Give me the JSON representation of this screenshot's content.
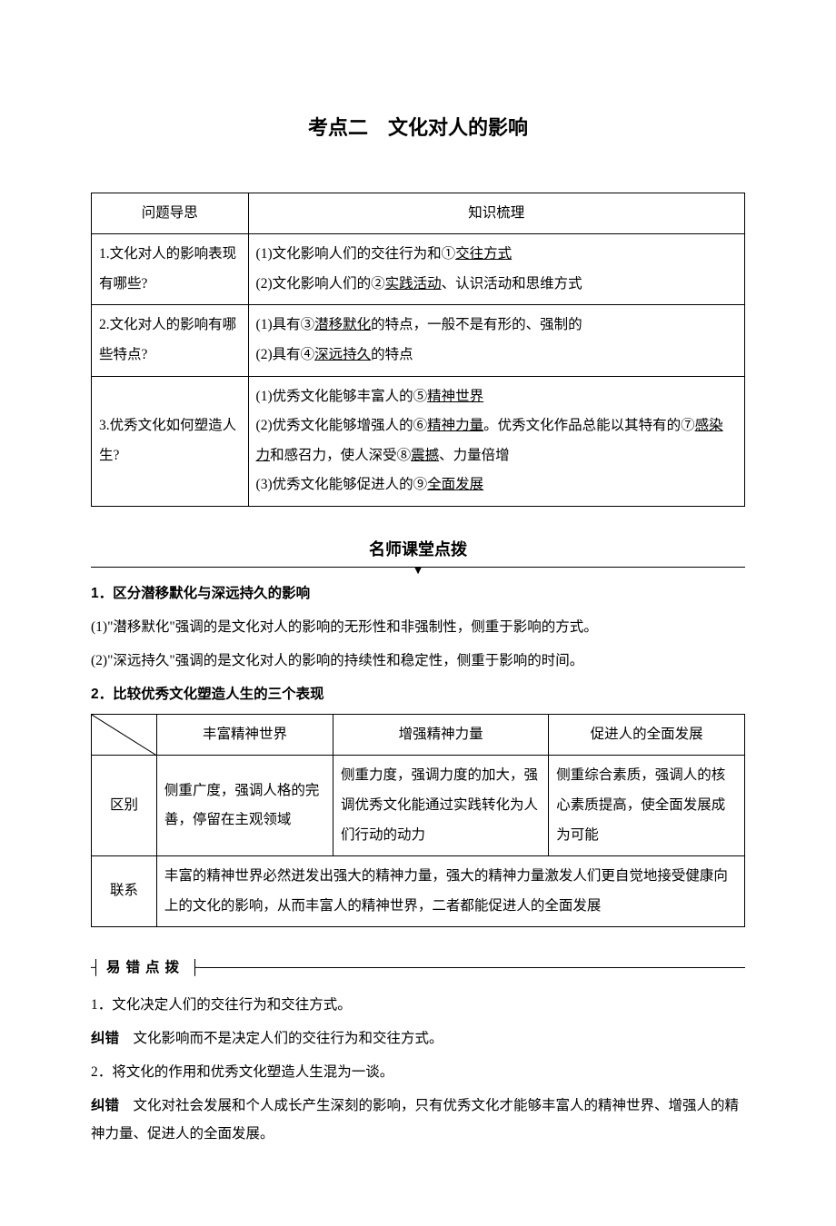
{
  "title": "考点二　文化对人的影响",
  "table1": {
    "header": {
      "left": "问题导思",
      "right": "知识梳理"
    },
    "rows": [
      {
        "q": "1.文化对人的影响表现有哪些?",
        "a_parts": [
          [
            {
              "t": "(1)文化影响人们的交往行为和①"
            },
            {
              "t": "交往方式",
              "u": true
            }
          ],
          [
            {
              "t": "(2)文化影响人们的②"
            },
            {
              "t": "实践活动",
              "u": true
            },
            {
              "t": "、认识活动和思维方式"
            }
          ]
        ]
      },
      {
        "q": "2.文化对人的影响有哪些特点?",
        "a_parts": [
          [
            {
              "t": "(1)具有③"
            },
            {
              "t": "潜移默化",
              "u": true
            },
            {
              "t": "的特点，一般不是有形的、强制的"
            }
          ],
          [
            {
              "t": "(2)具有④"
            },
            {
              "t": "深远持久",
              "u": true
            },
            {
              "t": "的特点"
            }
          ]
        ]
      },
      {
        "q": "3.优秀文化如何塑造人生?",
        "a_parts": [
          [
            {
              "t": "(1)优秀文化能够丰富人的⑤"
            },
            {
              "t": "精神世界",
              "u": true
            }
          ],
          [
            {
              "t": "(2)优秀文化能够增强人的⑥"
            },
            {
              "t": "精神力量",
              "u": true
            },
            {
              "t": "。优秀文化作品总能以其特有的⑦"
            },
            {
              "t": "感染力",
              "u": true
            },
            {
              "t": "和感召力，使人深受⑧"
            },
            {
              "t": "震撼",
              "u": true
            },
            {
              "t": "、力量倍增"
            }
          ],
          [
            {
              "t": "(3)优秀文化能够促进人的⑨"
            },
            {
              "t": "全面发展",
              "u": true
            }
          ]
        ]
      }
    ]
  },
  "section2_title": "名师课堂点拨",
  "point1": {
    "head": "1．区分潜移默化与深远持久的影响",
    "lines": [
      "(1)\"潜移默化\"强调的是文化对人的影响的无形性和非强制性，侧重于影响的方式。",
      "(2)\"深远持久\"强调的是文化对人的影响的持续性和稳定性，侧重于影响的时间。"
    ]
  },
  "point2_head": "2．比较优秀文化塑造人生的三个表现",
  "table2": {
    "headers": [
      "丰富精神世界",
      "增强精神力量",
      "促进人的全面发展"
    ],
    "row_diff_label": "区别",
    "row_diff": [
      "侧重广度，强调人格的完善，停留在主观领域",
      "侧重力度，强调力度的加大，强调优秀文化能通过实践转化为人们行动的动力",
      "侧重综合素质，强调人的核心素质提高，使全面发展成为可能"
    ],
    "row_link_label": "联系",
    "row_link": "丰富的精神世界必然迸发出强大的精神力量，强大的精神力量激发人们更自觉地接受健康向上的文化的影响，从而丰富人的精神世界，二者都能促进人的全面发展"
  },
  "err_header": "易错点拨",
  "errs": [
    {
      "q": "1．文化决定人们的交往行为和交往方式。",
      "a_label": "纠错",
      "a": "　文化影响而不是决定人们的交往行为和交往方式。"
    },
    {
      "q": "2．将文化的作用和优秀文化塑造人生混为一谈。",
      "a_label": "纠错",
      "a": "　文化对社会发展和个人成长产生深刻的影响，只有优秀文化才能够丰富人的精神世界、增强人的精神力量、促进人的全面发展。"
    }
  ],
  "colors": {
    "text": "#000000",
    "bg": "#ffffff",
    "border": "#000000"
  }
}
